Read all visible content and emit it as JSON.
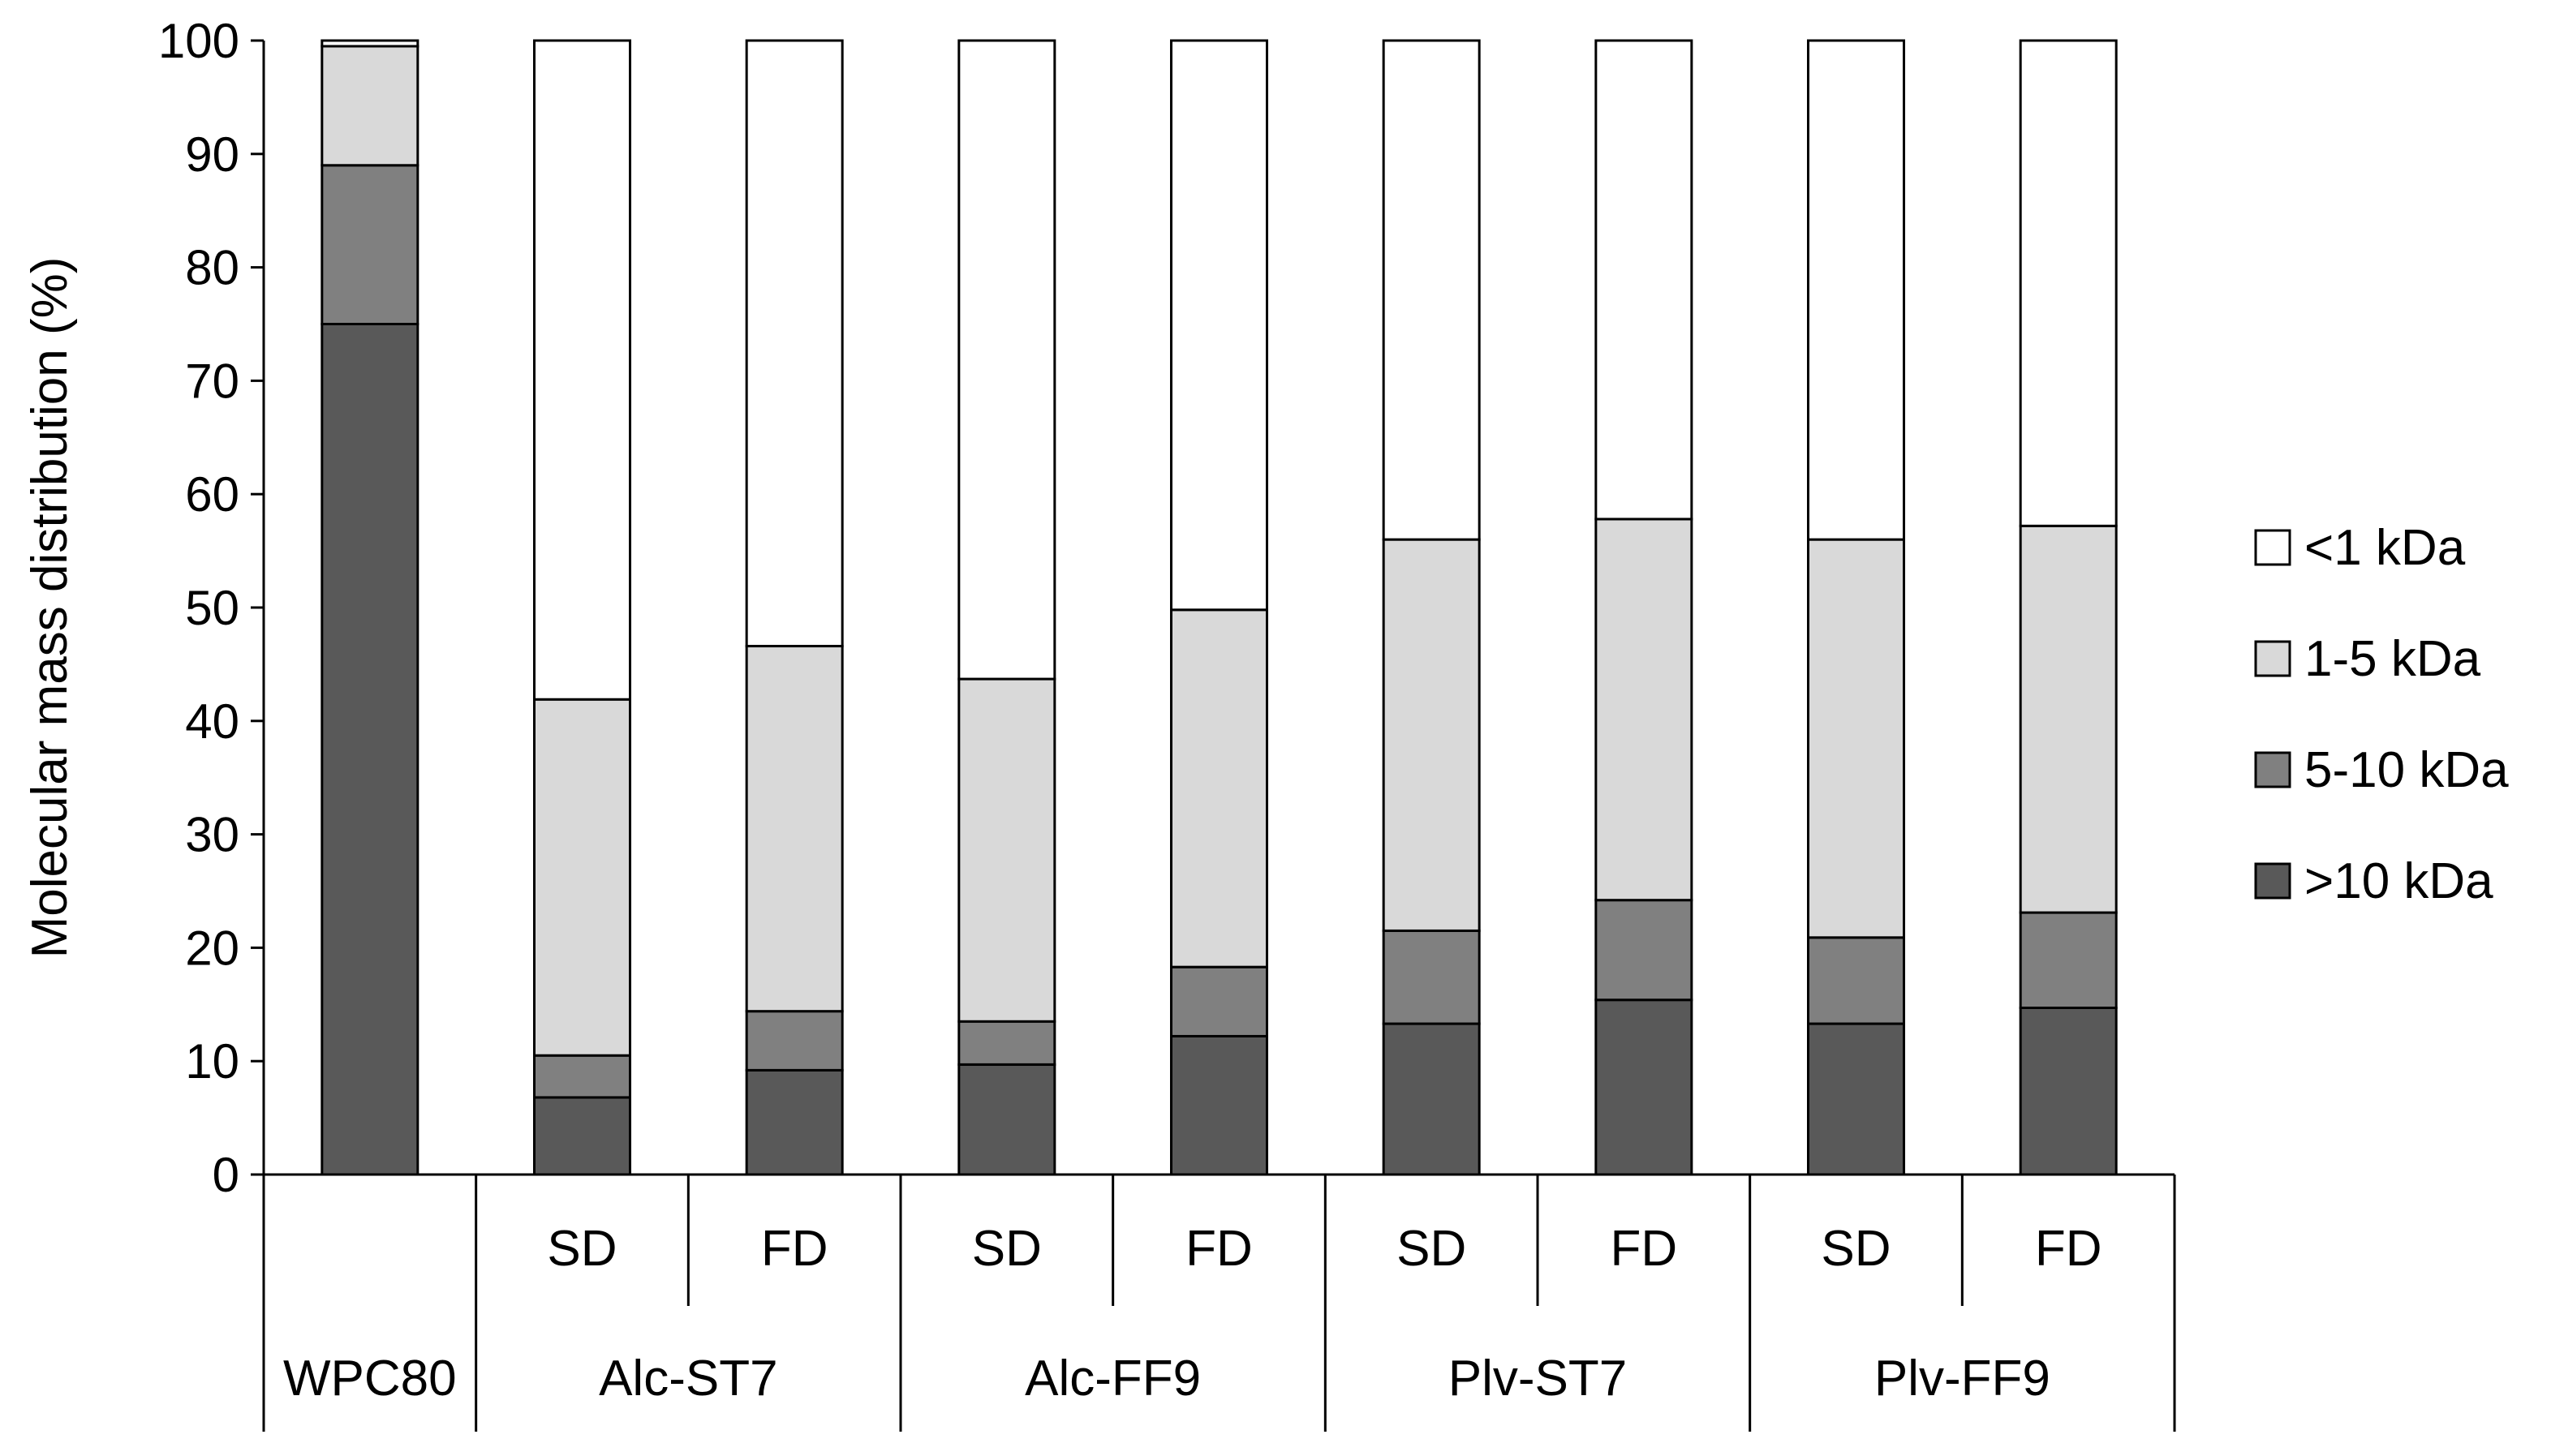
{
  "chart_data": {
    "type": "bar",
    "stacked": true,
    "ylabel": "Molecular mass distribution (%)",
    "ylim": [
      0,
      100
    ],
    "yticks": [
      0,
      10,
      20,
      30,
      40,
      50,
      60,
      70,
      80,
      90,
      100
    ],
    "groups": [
      {
        "label": "WPC80",
        "bars": [
          ""
        ]
      },
      {
        "label": "Alc-ST7",
        "bars": [
          "SD",
          "FD"
        ]
      },
      {
        "label": "Alc-FF9",
        "bars": [
          "SD",
          "FD"
        ]
      },
      {
        "label": "Plv-ST7",
        "bars": [
          "SD",
          "FD"
        ]
      },
      {
        "label": "Plv-FF9",
        "bars": [
          "SD",
          "FD"
        ]
      }
    ],
    "categories": [
      "WPC80",
      "Alc-ST7 SD",
      "Alc-ST7 FD",
      "Alc-FF9 SD",
      "Alc-FF9 FD",
      "Plv-ST7 SD",
      "Plv-ST7 FD",
      "Plv-FF9 SD",
      "Plv-FF9 FD"
    ],
    "series": [
      {
        "name": ">10 kDa",
        "color": "#595959",
        "values": [
          75,
          6.8,
          9.2,
          9.7,
          12.2,
          13.3,
          15.4,
          13.3,
          14.7
        ]
      },
      {
        "name": "5-10 kDa",
        "color": "#808080",
        "values": [
          14,
          3.7,
          5.2,
          3.8,
          6.1,
          8.2,
          8.8,
          7.6,
          8.4
        ]
      },
      {
        "name": "1-5 kDa",
        "color": "#d9d9d9",
        "values": [
          10.5,
          31.4,
          32.2,
          30.2,
          31.5,
          34.5,
          33.6,
          35.1,
          34.1
        ]
      },
      {
        "name": "<1 kDa",
        "color": "#ffffff",
        "values": [
          0.5,
          58.1,
          53.4,
          56.3,
          50.2,
          44.0,
          42.2,
          44.0,
          42.8
        ]
      }
    ],
    "legend_order": [
      "<1 kDa",
      "1-5 kDa",
      "5-10 kDa",
      ">10 kDa"
    ],
    "legend_position": "right"
  }
}
